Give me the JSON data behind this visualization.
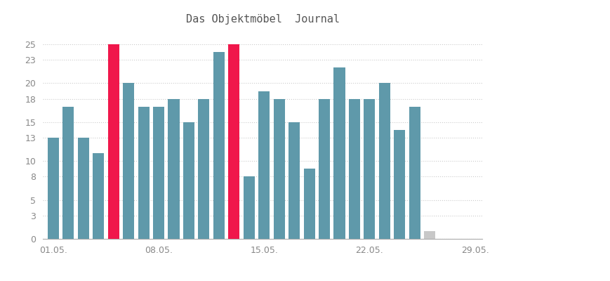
{
  "title": "Das Objektmöbel  Journal",
  "values": [
    13,
    17,
    13,
    11,
    25,
    20,
    17,
    17,
    18,
    15,
    18,
    24,
    25,
    8,
    19,
    18,
    15,
    9,
    18,
    22,
    18,
    18,
    20,
    14,
    17,
    1
  ],
  "colors": [
    "teal",
    "teal",
    "teal",
    "teal",
    "red",
    "teal",
    "teal",
    "teal",
    "teal",
    "teal",
    "teal",
    "teal",
    "red",
    "teal",
    "teal",
    "teal",
    "teal",
    "teal",
    "teal",
    "teal",
    "teal",
    "teal",
    "teal",
    "teal",
    "teal",
    "gray"
  ],
  "bar_color_normal": "#5f99aa",
  "bar_color_best": "#f0174b",
  "bar_color_today": "#c8c8c8",
  "xtick_labels": [
    "01.05.",
    "08.05.",
    "15.05.",
    "22.05.",
    "29.05."
  ],
  "xtick_positions": [
    0,
    7,
    14,
    21,
    28
  ],
  "ylim": [
    0,
    26
  ],
  "yticks": [
    0,
    3,
    5,
    8,
    10,
    13,
    15,
    18,
    20,
    23,
    25
  ],
  "background_color": "#ffffff",
  "grid_color": "#cccccc",
  "title_fontsize": 11,
  "tick_fontsize": 9
}
